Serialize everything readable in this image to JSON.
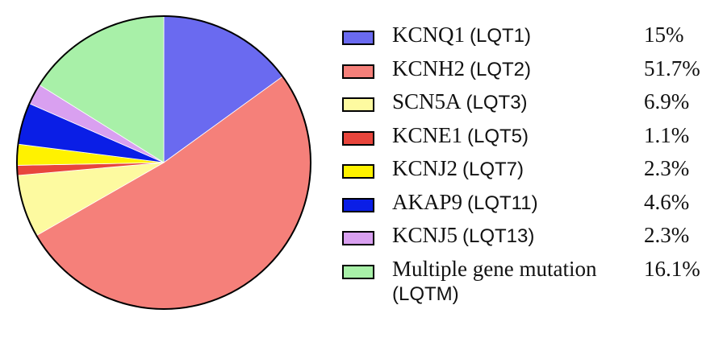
{
  "chart_data": {
    "type": "pie",
    "title": "",
    "slices": [
      {
        "gene": "KCNQ1",
        "type": "(LQT1)",
        "label": "15%",
        "value": 15,
        "color": "#6a6af0"
      },
      {
        "gene": "KCNH2",
        "type": "(LQT2)",
        "label": "51.7%",
        "value": 51.7,
        "color": "#f5807a"
      },
      {
        "gene": "SCN5A",
        "type": "(LQT3)",
        "label": "6.9%",
        "value": 6.9,
        "color": "#fdfaa0"
      },
      {
        "gene": "KCNE1",
        "type": "(LQT5)",
        "label": "1.1%",
        "value": 1.1,
        "color": "#e8453c"
      },
      {
        "gene": "KCNJ2",
        "type": "(LQT7)",
        "label": "2.3%",
        "value": 2.3,
        "color": "#fff200"
      },
      {
        "gene": "AKAP9",
        "type": "(LQT11)",
        "label": "4.6%",
        "value": 4.6,
        "color": "#0a1ee6"
      },
      {
        "gene": "KCNJ5",
        "type": "(LQT13)",
        "label": "2.3%",
        "value": 2.3,
        "color": "#d9a0f0"
      },
      {
        "gene": "Multiple gene mutation",
        "type": "(LQTM)",
        "label": "16.1%",
        "value": 16.1,
        "color": "#a8f0a8"
      }
    ],
    "start_angle": "12 o'clock",
    "direction": "clockwise",
    "legend_position": "right"
  }
}
